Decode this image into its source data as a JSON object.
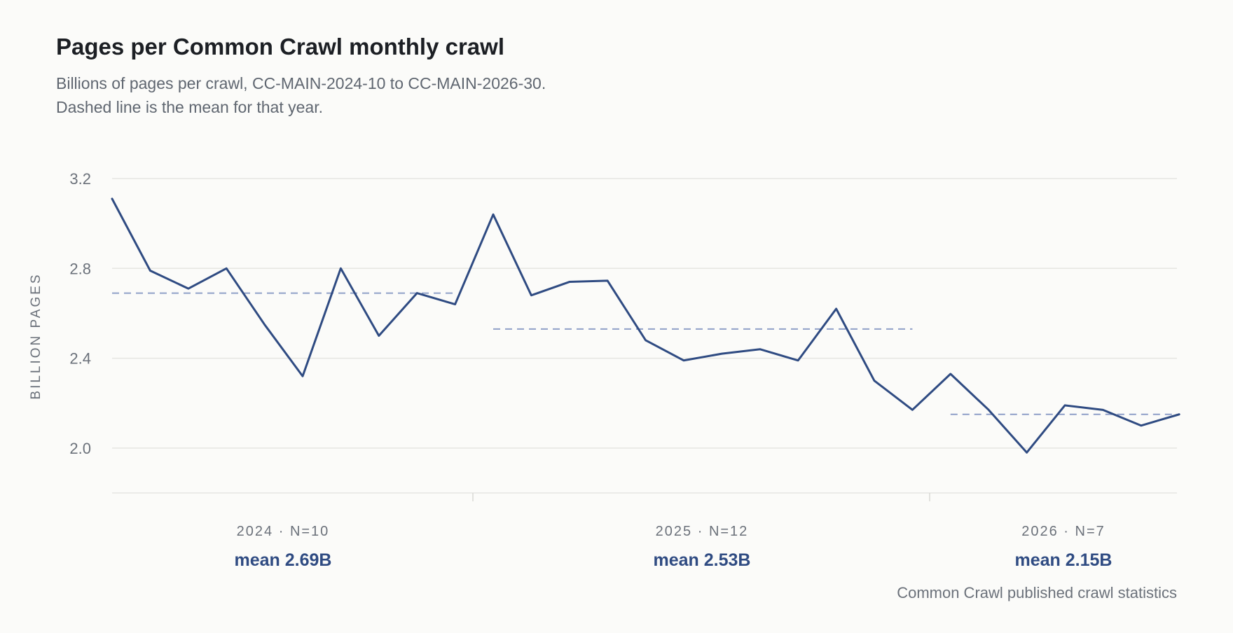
{
  "title": "Pages per Common Crawl monthly crawl",
  "subtitle": [
    "Billions of pages per crawl, CC-MAIN-2024-10 to CC-MAIN-2026-30.",
    "Dashed line is the mean for that year."
  ],
  "source": "Common Crawl published crawl statistics",
  "colors": {
    "line": "#2f4b82",
    "mean_line": "#8fa0c8",
    "grid": "#e6e6e2",
    "text_muted": "#6b717a"
  },
  "chart_data": {
    "type": "line",
    "ylabel": "BILLION PAGES",
    "ylim": [
      1.8,
      3.2
    ],
    "yticks": [
      2.0,
      2.4,
      2.8,
      3.2
    ],
    "ytick_labels": [
      "2.0",
      "2.4",
      "2.8",
      "3.2"
    ],
    "grid": true,
    "series": [
      {
        "values": [
          3.11,
          2.79,
          2.71,
          2.8,
          2.55,
          2.32,
          2.8,
          2.5,
          2.69,
          2.64,
          3.04,
          2.68,
          2.74,
          2.745,
          2.48,
          2.39,
          2.42,
          2.44,
          2.39,
          2.62,
          2.3,
          2.17,
          2.33,
          2.17,
          1.98,
          2.19,
          2.17,
          2.1,
          2.15
        ]
      }
    ],
    "groups": [
      {
        "label": "2024 · N=10",
        "count": 10,
        "mean": 2.69,
        "mean_label": "mean 2.69B"
      },
      {
        "label": "2025 · N=12",
        "count": 12,
        "mean": 2.53,
        "mean_label": "mean 2.53B"
      },
      {
        "label": "2026 · N=7",
        "count": 7,
        "mean": 2.15,
        "mean_label": "mean 2.15B"
      }
    ]
  }
}
